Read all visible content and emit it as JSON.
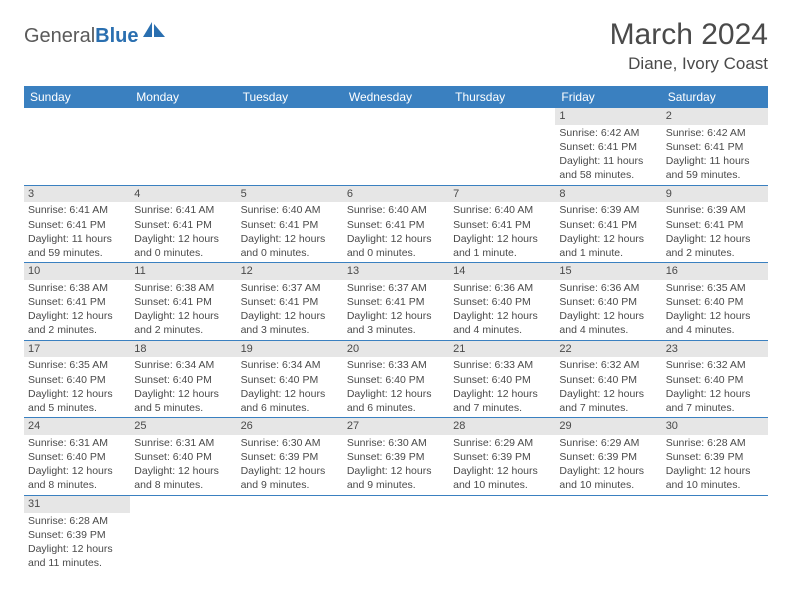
{
  "logo": {
    "word1": "General",
    "word2": "Blue"
  },
  "title": "March 2024",
  "location": "Diane, Ivory Coast",
  "colors": {
    "header_bg": "#3a80c0",
    "header_text": "#ffffff",
    "daynum_bg": "#e6e6e6",
    "text": "#4a4a4a",
    "rule": "#3a80c0",
    "logo_blue": "#2a6fb0"
  },
  "weekdays": [
    "Sunday",
    "Monday",
    "Tuesday",
    "Wednesday",
    "Thursday",
    "Friday",
    "Saturday"
  ],
  "weeks": [
    [
      null,
      null,
      null,
      null,
      null,
      {
        "n": "1",
        "sunrise": "Sunrise: 6:42 AM",
        "sunset": "Sunset: 6:41 PM",
        "daylight": "Daylight: 11 hours and 58 minutes."
      },
      {
        "n": "2",
        "sunrise": "Sunrise: 6:42 AM",
        "sunset": "Sunset: 6:41 PM",
        "daylight": "Daylight: 11 hours and 59 minutes."
      }
    ],
    [
      {
        "n": "3",
        "sunrise": "Sunrise: 6:41 AM",
        "sunset": "Sunset: 6:41 PM",
        "daylight": "Daylight: 11 hours and 59 minutes."
      },
      {
        "n": "4",
        "sunrise": "Sunrise: 6:41 AM",
        "sunset": "Sunset: 6:41 PM",
        "daylight": "Daylight: 12 hours and 0 minutes."
      },
      {
        "n": "5",
        "sunrise": "Sunrise: 6:40 AM",
        "sunset": "Sunset: 6:41 PM",
        "daylight": "Daylight: 12 hours and 0 minutes."
      },
      {
        "n": "6",
        "sunrise": "Sunrise: 6:40 AM",
        "sunset": "Sunset: 6:41 PM",
        "daylight": "Daylight: 12 hours and 0 minutes."
      },
      {
        "n": "7",
        "sunrise": "Sunrise: 6:40 AM",
        "sunset": "Sunset: 6:41 PM",
        "daylight": "Daylight: 12 hours and 1 minute."
      },
      {
        "n": "8",
        "sunrise": "Sunrise: 6:39 AM",
        "sunset": "Sunset: 6:41 PM",
        "daylight": "Daylight: 12 hours and 1 minute."
      },
      {
        "n": "9",
        "sunrise": "Sunrise: 6:39 AM",
        "sunset": "Sunset: 6:41 PM",
        "daylight": "Daylight: 12 hours and 2 minutes."
      }
    ],
    [
      {
        "n": "10",
        "sunrise": "Sunrise: 6:38 AM",
        "sunset": "Sunset: 6:41 PM",
        "daylight": "Daylight: 12 hours and 2 minutes."
      },
      {
        "n": "11",
        "sunrise": "Sunrise: 6:38 AM",
        "sunset": "Sunset: 6:41 PM",
        "daylight": "Daylight: 12 hours and 2 minutes."
      },
      {
        "n": "12",
        "sunrise": "Sunrise: 6:37 AM",
        "sunset": "Sunset: 6:41 PM",
        "daylight": "Daylight: 12 hours and 3 minutes."
      },
      {
        "n": "13",
        "sunrise": "Sunrise: 6:37 AM",
        "sunset": "Sunset: 6:41 PM",
        "daylight": "Daylight: 12 hours and 3 minutes."
      },
      {
        "n": "14",
        "sunrise": "Sunrise: 6:36 AM",
        "sunset": "Sunset: 6:40 PM",
        "daylight": "Daylight: 12 hours and 4 minutes."
      },
      {
        "n": "15",
        "sunrise": "Sunrise: 6:36 AM",
        "sunset": "Sunset: 6:40 PM",
        "daylight": "Daylight: 12 hours and 4 minutes."
      },
      {
        "n": "16",
        "sunrise": "Sunrise: 6:35 AM",
        "sunset": "Sunset: 6:40 PM",
        "daylight": "Daylight: 12 hours and 4 minutes."
      }
    ],
    [
      {
        "n": "17",
        "sunrise": "Sunrise: 6:35 AM",
        "sunset": "Sunset: 6:40 PM",
        "daylight": "Daylight: 12 hours and 5 minutes."
      },
      {
        "n": "18",
        "sunrise": "Sunrise: 6:34 AM",
        "sunset": "Sunset: 6:40 PM",
        "daylight": "Daylight: 12 hours and 5 minutes."
      },
      {
        "n": "19",
        "sunrise": "Sunrise: 6:34 AM",
        "sunset": "Sunset: 6:40 PM",
        "daylight": "Daylight: 12 hours and 6 minutes."
      },
      {
        "n": "20",
        "sunrise": "Sunrise: 6:33 AM",
        "sunset": "Sunset: 6:40 PM",
        "daylight": "Daylight: 12 hours and 6 minutes."
      },
      {
        "n": "21",
        "sunrise": "Sunrise: 6:33 AM",
        "sunset": "Sunset: 6:40 PM",
        "daylight": "Daylight: 12 hours and 7 minutes."
      },
      {
        "n": "22",
        "sunrise": "Sunrise: 6:32 AM",
        "sunset": "Sunset: 6:40 PM",
        "daylight": "Daylight: 12 hours and 7 minutes."
      },
      {
        "n": "23",
        "sunrise": "Sunrise: 6:32 AM",
        "sunset": "Sunset: 6:40 PM",
        "daylight": "Daylight: 12 hours and 7 minutes."
      }
    ],
    [
      {
        "n": "24",
        "sunrise": "Sunrise: 6:31 AM",
        "sunset": "Sunset: 6:40 PM",
        "daylight": "Daylight: 12 hours and 8 minutes."
      },
      {
        "n": "25",
        "sunrise": "Sunrise: 6:31 AM",
        "sunset": "Sunset: 6:40 PM",
        "daylight": "Daylight: 12 hours and 8 minutes."
      },
      {
        "n": "26",
        "sunrise": "Sunrise: 6:30 AM",
        "sunset": "Sunset: 6:39 PM",
        "daylight": "Daylight: 12 hours and 9 minutes."
      },
      {
        "n": "27",
        "sunrise": "Sunrise: 6:30 AM",
        "sunset": "Sunset: 6:39 PM",
        "daylight": "Daylight: 12 hours and 9 minutes."
      },
      {
        "n": "28",
        "sunrise": "Sunrise: 6:29 AM",
        "sunset": "Sunset: 6:39 PM",
        "daylight": "Daylight: 12 hours and 10 minutes."
      },
      {
        "n": "29",
        "sunrise": "Sunrise: 6:29 AM",
        "sunset": "Sunset: 6:39 PM",
        "daylight": "Daylight: 12 hours and 10 minutes."
      },
      {
        "n": "30",
        "sunrise": "Sunrise: 6:28 AM",
        "sunset": "Sunset: 6:39 PM",
        "daylight": "Daylight: 12 hours and 10 minutes."
      }
    ],
    [
      {
        "n": "31",
        "sunrise": "Sunrise: 6:28 AM",
        "sunset": "Sunset: 6:39 PM",
        "daylight": "Daylight: 12 hours and 11 minutes."
      },
      null,
      null,
      null,
      null,
      null,
      null
    ]
  ]
}
